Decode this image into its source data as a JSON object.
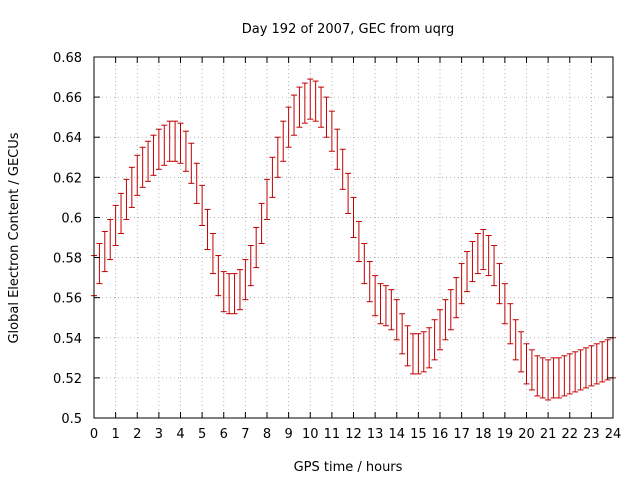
{
  "chart_data": {
    "type": "scatter",
    "title": "Day 192 of 2007, GEC from uqrg",
    "xlabel": "GPS time / hours",
    "ylabel": "Global Electron Content / GECUs",
    "xlim": [
      0,
      24
    ],
    "ylim": [
      0.5,
      0.68
    ],
    "grid": true,
    "legend": "none",
    "color": "#c00000",
    "error_bar_halfwidth": 0.01,
    "x_ticks": [
      0,
      1,
      2,
      3,
      4,
      5,
      6,
      7,
      8,
      9,
      10,
      11,
      12,
      13,
      14,
      15,
      16,
      17,
      18,
      19,
      20,
      21,
      22,
      23,
      24
    ],
    "y_ticks": [
      0.5,
      0.52,
      0.54,
      0.56,
      0.58,
      0.6,
      0.62,
      0.64,
      0.66,
      0.68
    ],
    "y_tick_labels": [
      "0.5",
      "0.52",
      "0.54",
      "0.56",
      "0.58",
      "0.6",
      "0.62",
      "0.64",
      "0.66",
      "0.68"
    ],
    "series": [
      {
        "x": [
          0,
          0.25,
          0.5,
          0.75,
          1,
          1.25,
          1.5,
          1.75,
          2,
          2.25,
          2.5,
          2.75,
          3,
          3.25,
          3.5,
          3.75,
          4,
          4.25,
          4.5,
          4.75,
          5,
          5.25,
          5.5,
          5.75,
          6,
          6.25,
          6.5,
          6.75,
          7,
          7.25,
          7.5,
          7.75,
          8,
          8.25,
          8.5,
          8.75,
          9,
          9.25,
          9.5,
          9.75,
          10,
          10.25,
          10.5,
          10.75,
          11,
          11.25,
          11.5,
          11.75,
          12,
          12.25,
          12.5,
          12.75,
          13,
          13.25,
          13.5,
          13.75,
          14,
          14.25,
          14.5,
          14.75,
          15,
          15.25,
          15.5,
          15.75,
          16,
          16.25,
          16.5,
          16.75,
          17,
          17.25,
          17.5,
          17.75,
          18,
          18.25,
          18.5,
          18.75,
          19,
          19.25,
          19.5,
          19.75,
          20,
          20.25,
          20.5,
          20.75,
          21,
          21.25,
          21.5,
          21.75,
          22,
          22.25,
          22.5,
          22.75,
          23,
          23.25,
          23.5,
          23.75,
          24
        ],
        "y": [
          0.571,
          0.577,
          0.583,
          0.589,
          0.596,
          0.602,
          0.609,
          0.615,
          0.621,
          0.625,
          0.628,
          0.631,
          0.634,
          0.636,
          0.638,
          0.638,
          0.637,
          0.633,
          0.627,
          0.617,
          0.606,
          0.594,
          0.582,
          0.571,
          0.563,
          0.562,
          0.562,
          0.564,
          0.569,
          0.576,
          0.585,
          0.597,
          0.609,
          0.62,
          0.63,
          0.638,
          0.645,
          0.651,
          0.655,
          0.657,
          0.659,
          0.658,
          0.655,
          0.65,
          0.643,
          0.634,
          0.624,
          0.612,
          0.6,
          0.588,
          0.577,
          0.568,
          0.561,
          0.557,
          0.556,
          0.554,
          0.549,
          0.542,
          0.536,
          0.532,
          0.532,
          0.533,
          0.535,
          0.539,
          0.544,
          0.549,
          0.554,
          0.56,
          0.567,
          0.573,
          0.578,
          0.582,
          0.584,
          0.581,
          0.576,
          0.567,
          0.557,
          0.547,
          0.539,
          0.533,
          0.527,
          0.524,
          0.521,
          0.52,
          0.519,
          0.52,
          0.52,
          0.521,
          0.522,
          0.523,
          0.524,
          0.525,
          0.526,
          0.527,
          0.528,
          0.529,
          0.53
        ]
      }
    ]
  }
}
